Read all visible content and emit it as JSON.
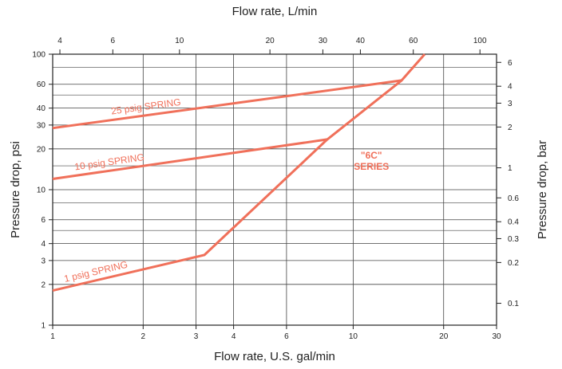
{
  "chart_data": {
    "type": "line",
    "x_scale": "log",
    "y_scale": "log",
    "grid": true,
    "xlabel": "Flow rate, U.S. gal/min",
    "xlabel_top": "Flow rate, L/min",
    "ylabel": "Pressure drop, psi",
    "ylabel_right": "Pressure drop, bar",
    "xlim": [
      1,
      30
    ],
    "ylim": [
      1,
      100
    ],
    "x_ticks": [
      1,
      2,
      3,
      4,
      6,
      10,
      20,
      30
    ],
    "y_ticks": [
      1,
      2,
      3,
      4,
      6,
      10,
      20,
      30,
      40,
      60,
      100
    ],
    "x_ticks_top": [
      4,
      6,
      10,
      20,
      30,
      40,
      60,
      100
    ],
    "y_ticks_right": [
      0.1,
      0.2,
      0.3,
      0.4,
      0.6,
      1,
      2,
      3,
      4,
      6
    ],
    "series": [
      {
        "name": "25 psig SPRING",
        "color": "#f0705a",
        "x": [
          1,
          14.5
        ],
        "y": [
          28.5,
          64
        ]
      },
      {
        "name": "10 psig SPRING",
        "color": "#f0705a",
        "x": [
          1,
          8.2
        ],
        "y": [
          12,
          23.5
        ]
      },
      {
        "name": "1 psig SPRING",
        "color": "#f0705a",
        "x": [
          1,
          3.2,
          8.2,
          14.5,
          17.3
        ],
        "y": [
          1.8,
          3.3,
          23.5,
          64,
          100
        ]
      }
    ],
    "annotation": {
      "line1": "\"6C\"",
      "line2": "SERIES",
      "color": "#f0705a"
    }
  }
}
